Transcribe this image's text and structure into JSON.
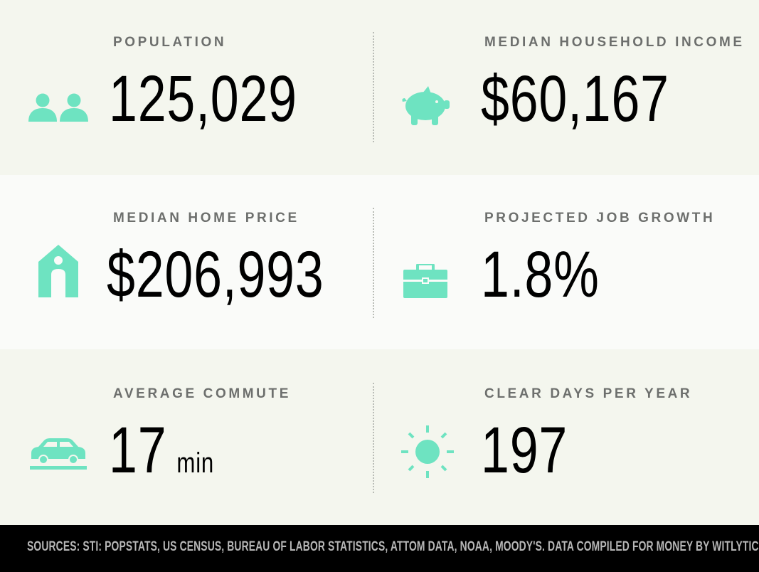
{
  "stats": {
    "population": {
      "label": "POPULATION",
      "value": "125,029",
      "icon": "people-icon"
    },
    "income": {
      "label": "MEDIAN HOUSEHOLD INCOME",
      "value": "$60,167",
      "icon": "piggy-bank-icon"
    },
    "home_price": {
      "label": "MEDIAN HOME PRICE",
      "value": "$206,993",
      "icon": "house-icon"
    },
    "job_growth": {
      "label": "PROJECTED JOB GROWTH",
      "value": "1.8%",
      "icon": "briefcase-icon"
    },
    "commute": {
      "label": "AVERAGE COMMUTE",
      "value": "17",
      "unit": "min",
      "icon": "car-icon"
    },
    "clear_days": {
      "label": "CLEAR DAYS PER YEAR",
      "value": "197",
      "icon": "sun-icon"
    }
  },
  "footer": {
    "sources": "SOURCES: STI: POPSTATS, US CENSUS, BUREAU OF LABOR STATISTICS, ATTOM DATA, NOAA, MOODY'S. DATA COMPILED FOR MONEY BY WITLYTIC."
  },
  "colors": {
    "icon_accent": "#6ee3c1",
    "band_light": "#f4f6ee",
    "band_white": "#fafbf9",
    "footer_bg": "#000000",
    "footer_text": "#b7b7b7",
    "label_text": "#6d6f6d"
  }
}
